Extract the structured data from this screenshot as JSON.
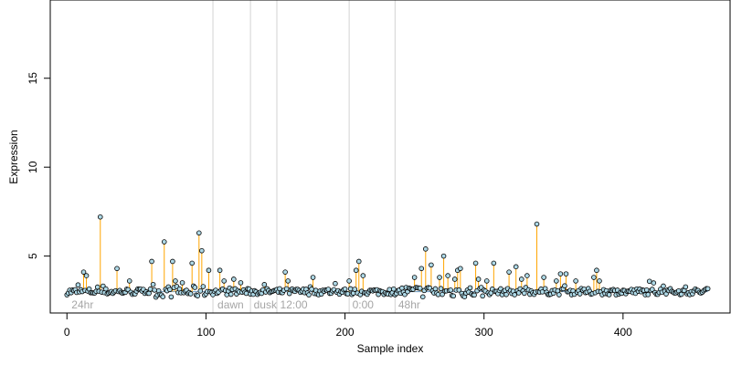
{
  "chart_data": {
    "type": "scatter",
    "title": "",
    "xlabel": "Sample index",
    "ylabel": "Expression",
    "xlim": [
      -12,
      477
    ],
    "ylim": [
      1.8,
      19.4
    ],
    "x_ticks": [
      0,
      100,
      200,
      300,
      400
    ],
    "y_ticks": [
      5,
      10,
      15
    ],
    "grid": false,
    "legend": "none",
    "baseline": 3.0,
    "colors": {
      "spike": "#ffa500",
      "baseline_line": "#4682b4",
      "period_divider": "#d3d3d3",
      "point_fill": "#add8e6",
      "point_stroke": "#000000",
      "period_label": "#a6a6a6"
    },
    "period_dividers": [
      105,
      132,
      151,
      203,
      236
    ],
    "period_labels": [
      {
        "x": 2,
        "text": "24hr"
      },
      {
        "x": 107,
        "text": "dawn"
      },
      {
        "x": 133,
        "text": "dusk"
      },
      {
        "x": 152,
        "text": "12:00"
      },
      {
        "x": 204,
        "text": "0:00"
      },
      {
        "x": 237,
        "text": "48hr"
      }
    ],
    "spikes": [
      {
        "x": 12,
        "y": 4.1
      },
      {
        "x": 14,
        "y": 3.9
      },
      {
        "x": 24,
        "y": 7.2
      },
      {
        "x": 36,
        "y": 4.3
      },
      {
        "x": 45,
        "y": 3.6
      },
      {
        "x": 61,
        "y": 4.7
      },
      {
        "x": 70,
        "y": 5.8
      },
      {
        "x": 76,
        "y": 4.7
      },
      {
        "x": 78,
        "y": 3.6
      },
      {
        "x": 83,
        "y": 3.5
      },
      {
        "x": 90,
        "y": 4.6
      },
      {
        "x": 95,
        "y": 6.3
      },
      {
        "x": 97,
        "y": 5.3
      },
      {
        "x": 102,
        "y": 4.2
      },
      {
        "x": 110,
        "y": 4.2
      },
      {
        "x": 113,
        "y": 3.6
      },
      {
        "x": 120,
        "y": 3.7
      },
      {
        "x": 125,
        "y": 3.5
      },
      {
        "x": 142,
        "y": 3.4
      },
      {
        "x": 157,
        "y": 4.1
      },
      {
        "x": 159,
        "y": 3.6
      },
      {
        "x": 177,
        "y": 3.8
      },
      {
        "x": 203,
        "y": 3.6
      },
      {
        "x": 208,
        "y": 4.2
      },
      {
        "x": 210,
        "y": 4.7
      },
      {
        "x": 213,
        "y": 3.9
      },
      {
        "x": 250,
        "y": 3.8
      },
      {
        "x": 255,
        "y": 4.3
      },
      {
        "x": 258,
        "y": 5.4
      },
      {
        "x": 262,
        "y": 4.5
      },
      {
        "x": 268,
        "y": 3.8
      },
      {
        "x": 271,
        "y": 5.0
      },
      {
        "x": 274,
        "y": 3.9
      },
      {
        "x": 279,
        "y": 3.7
      },
      {
        "x": 281,
        "y": 4.2
      },
      {
        "x": 283,
        "y": 4.3
      },
      {
        "x": 294,
        "y": 4.6
      },
      {
        "x": 296,
        "y": 3.7
      },
      {
        "x": 302,
        "y": 3.6
      },
      {
        "x": 307,
        "y": 4.6
      },
      {
        "x": 318,
        "y": 4.1
      },
      {
        "x": 323,
        "y": 4.4
      },
      {
        "x": 327,
        "y": 3.7
      },
      {
        "x": 331,
        "y": 3.9
      },
      {
        "x": 338,
        "y": 6.8
      },
      {
        "x": 343,
        "y": 3.8
      },
      {
        "x": 352,
        "y": 3.6
      },
      {
        "x": 355,
        "y": 4.0
      },
      {
        "x": 359,
        "y": 4.0
      },
      {
        "x": 366,
        "y": 3.6
      },
      {
        "x": 379,
        "y": 3.8
      },
      {
        "x": 381,
        "y": 4.2
      },
      {
        "x": 383,
        "y": 3.6
      }
    ],
    "n_points": 462
  }
}
